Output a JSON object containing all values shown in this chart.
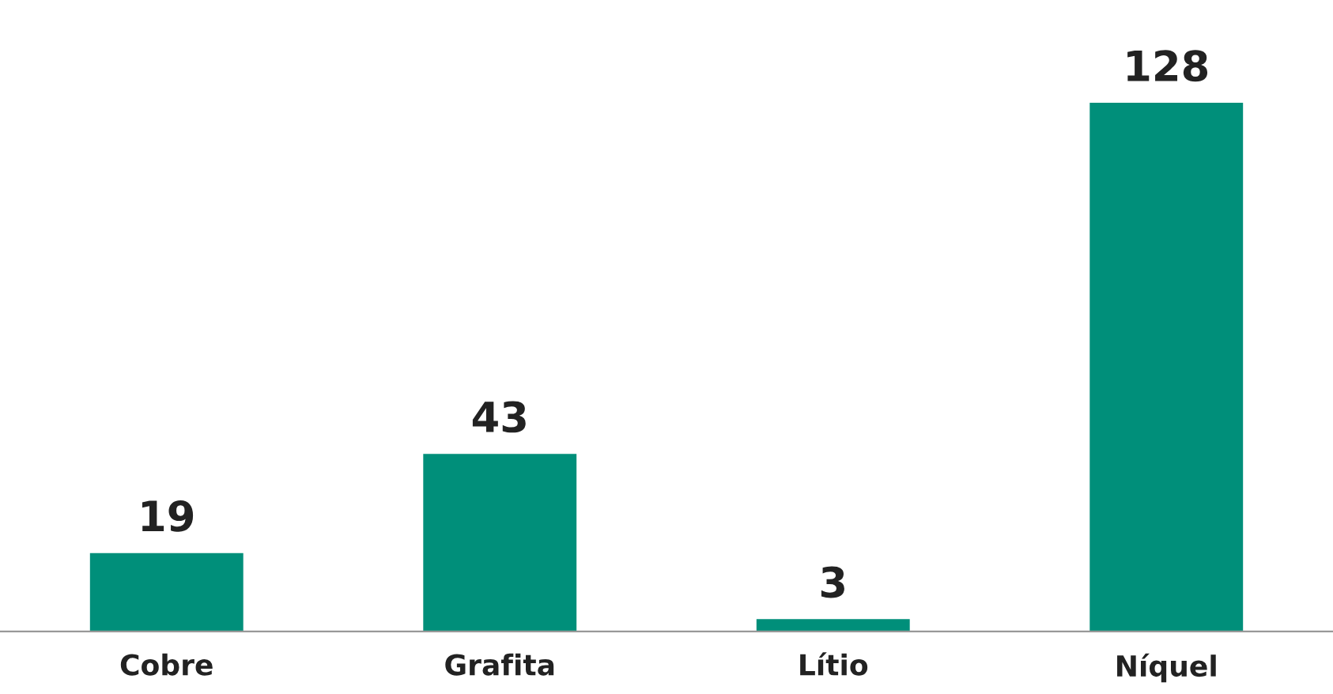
{
  "chart_data": {
    "type": "bar",
    "categories": [
      "Cobre",
      "Grafita",
      "Lítio",
      "Níquel"
    ],
    "values": [
      19,
      43,
      3,
      128
    ],
    "color": "#008f7a",
    "data_labels": true,
    "grid": false,
    "legend": false
  }
}
